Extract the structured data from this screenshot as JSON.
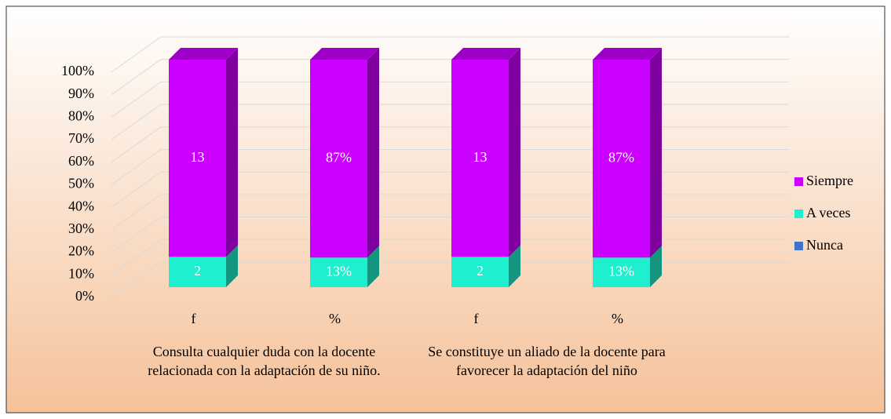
{
  "chart_data": {
    "type": "bar",
    "stacked": "percent",
    "categories": [
      "f",
      "%",
      "f",
      "%"
    ],
    "groups": [
      "Consulta cualquier duda con la docente relacionada con la adaptación de su niño.",
      "Se constituye un aliado de la docente para favorecer la adaptación del niño"
    ],
    "series": [
      {
        "name": "Nunca",
        "color": "#4472c4",
        "values": [
          0,
          0,
          0,
          0
        ]
      },
      {
        "name": "A veces",
        "color": "#1ef0cf",
        "values": [
          2,
          13,
          2,
          13
        ],
        "value_labels": [
          "2",
          "13%",
          "2",
          "13%"
        ]
      },
      {
        "name": "Siempre",
        "color": "#cc00ff",
        "values": [
          13,
          87,
          13,
          87
        ],
        "value_labels": [
          "13",
          "87%",
          "13",
          "87%"
        ]
      }
    ],
    "ylim": [
      0,
      100
    ],
    "yticks": [
      {
        "value": 0,
        "label": "0%"
      },
      {
        "value": 10,
        "label": "10%"
      },
      {
        "value": 20,
        "label": "20%"
      },
      {
        "value": 30,
        "label": "30%"
      },
      {
        "value": 40,
        "label": "40%"
      },
      {
        "value": 50,
        "label": "50%"
      },
      {
        "value": 60,
        "label": "60%"
      },
      {
        "value": 70,
        "label": "70%"
      },
      {
        "value": 80,
        "label": "80%"
      },
      {
        "value": 90,
        "label": "90%"
      },
      {
        "value": 100,
        "label": "100%"
      }
    ],
    "grid": true,
    "legend": "right"
  }
}
